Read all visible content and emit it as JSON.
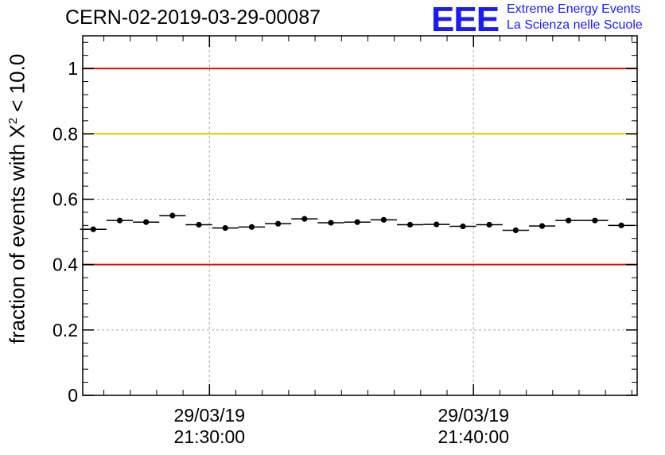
{
  "header": {
    "title": "CERN-02-2019-03-29-00087",
    "logo_text": "EEE",
    "logo_line1": "Extreme Energy Events",
    "logo_line2": "La Scienza nelle Scuole"
  },
  "chart_data": {
    "type": "scatter",
    "ylabel": "fraction of events with Χ",
    "ylabel_sup": "2",
    "ylabel_suffix": " < 10.0",
    "ylim": [
      0,
      1.1
    ],
    "yticks": [
      0,
      0.2,
      0.4,
      0.6,
      0.8,
      1
    ],
    "ytick_labels": [
      "0",
      "0.2",
      "0.4",
      "0.6",
      "0.8",
      "1"
    ],
    "xlim_minutes": [
      -4.8,
      16.2
    ],
    "xticks": [
      {
        "minute": 0,
        "date": "29/03/19",
        "time": "21:30:00"
      },
      {
        "minute": 10,
        "date": "29/03/19",
        "time": "21:40:00"
      }
    ],
    "grid": true,
    "reference_lines": [
      {
        "y": 1.0,
        "color": "#e01010"
      },
      {
        "y": 0.8,
        "color": "#f5c000"
      },
      {
        "y": 0.4,
        "color": "#e01010"
      }
    ],
    "bin_width_minutes": 1,
    "series": [
      {
        "x_minutes": [
          -4.4,
          -3.4,
          -2.4,
          -1.4,
          -0.4,
          0.6,
          1.6,
          2.6,
          3.6,
          4.6,
          5.6,
          6.6,
          7.6,
          8.6,
          9.6,
          10.6,
          11.6,
          12.6,
          13.6,
          14.6,
          15.6
        ],
        "values": [
          0.508,
          0.535,
          0.53,
          0.55,
          0.522,
          0.512,
          0.515,
          0.525,
          0.54,
          0.528,
          0.53,
          0.537,
          0.522,
          0.523,
          0.517,
          0.522,
          0.505,
          0.518,
          0.535,
          0.535,
          0.52
        ]
      }
    ]
  }
}
